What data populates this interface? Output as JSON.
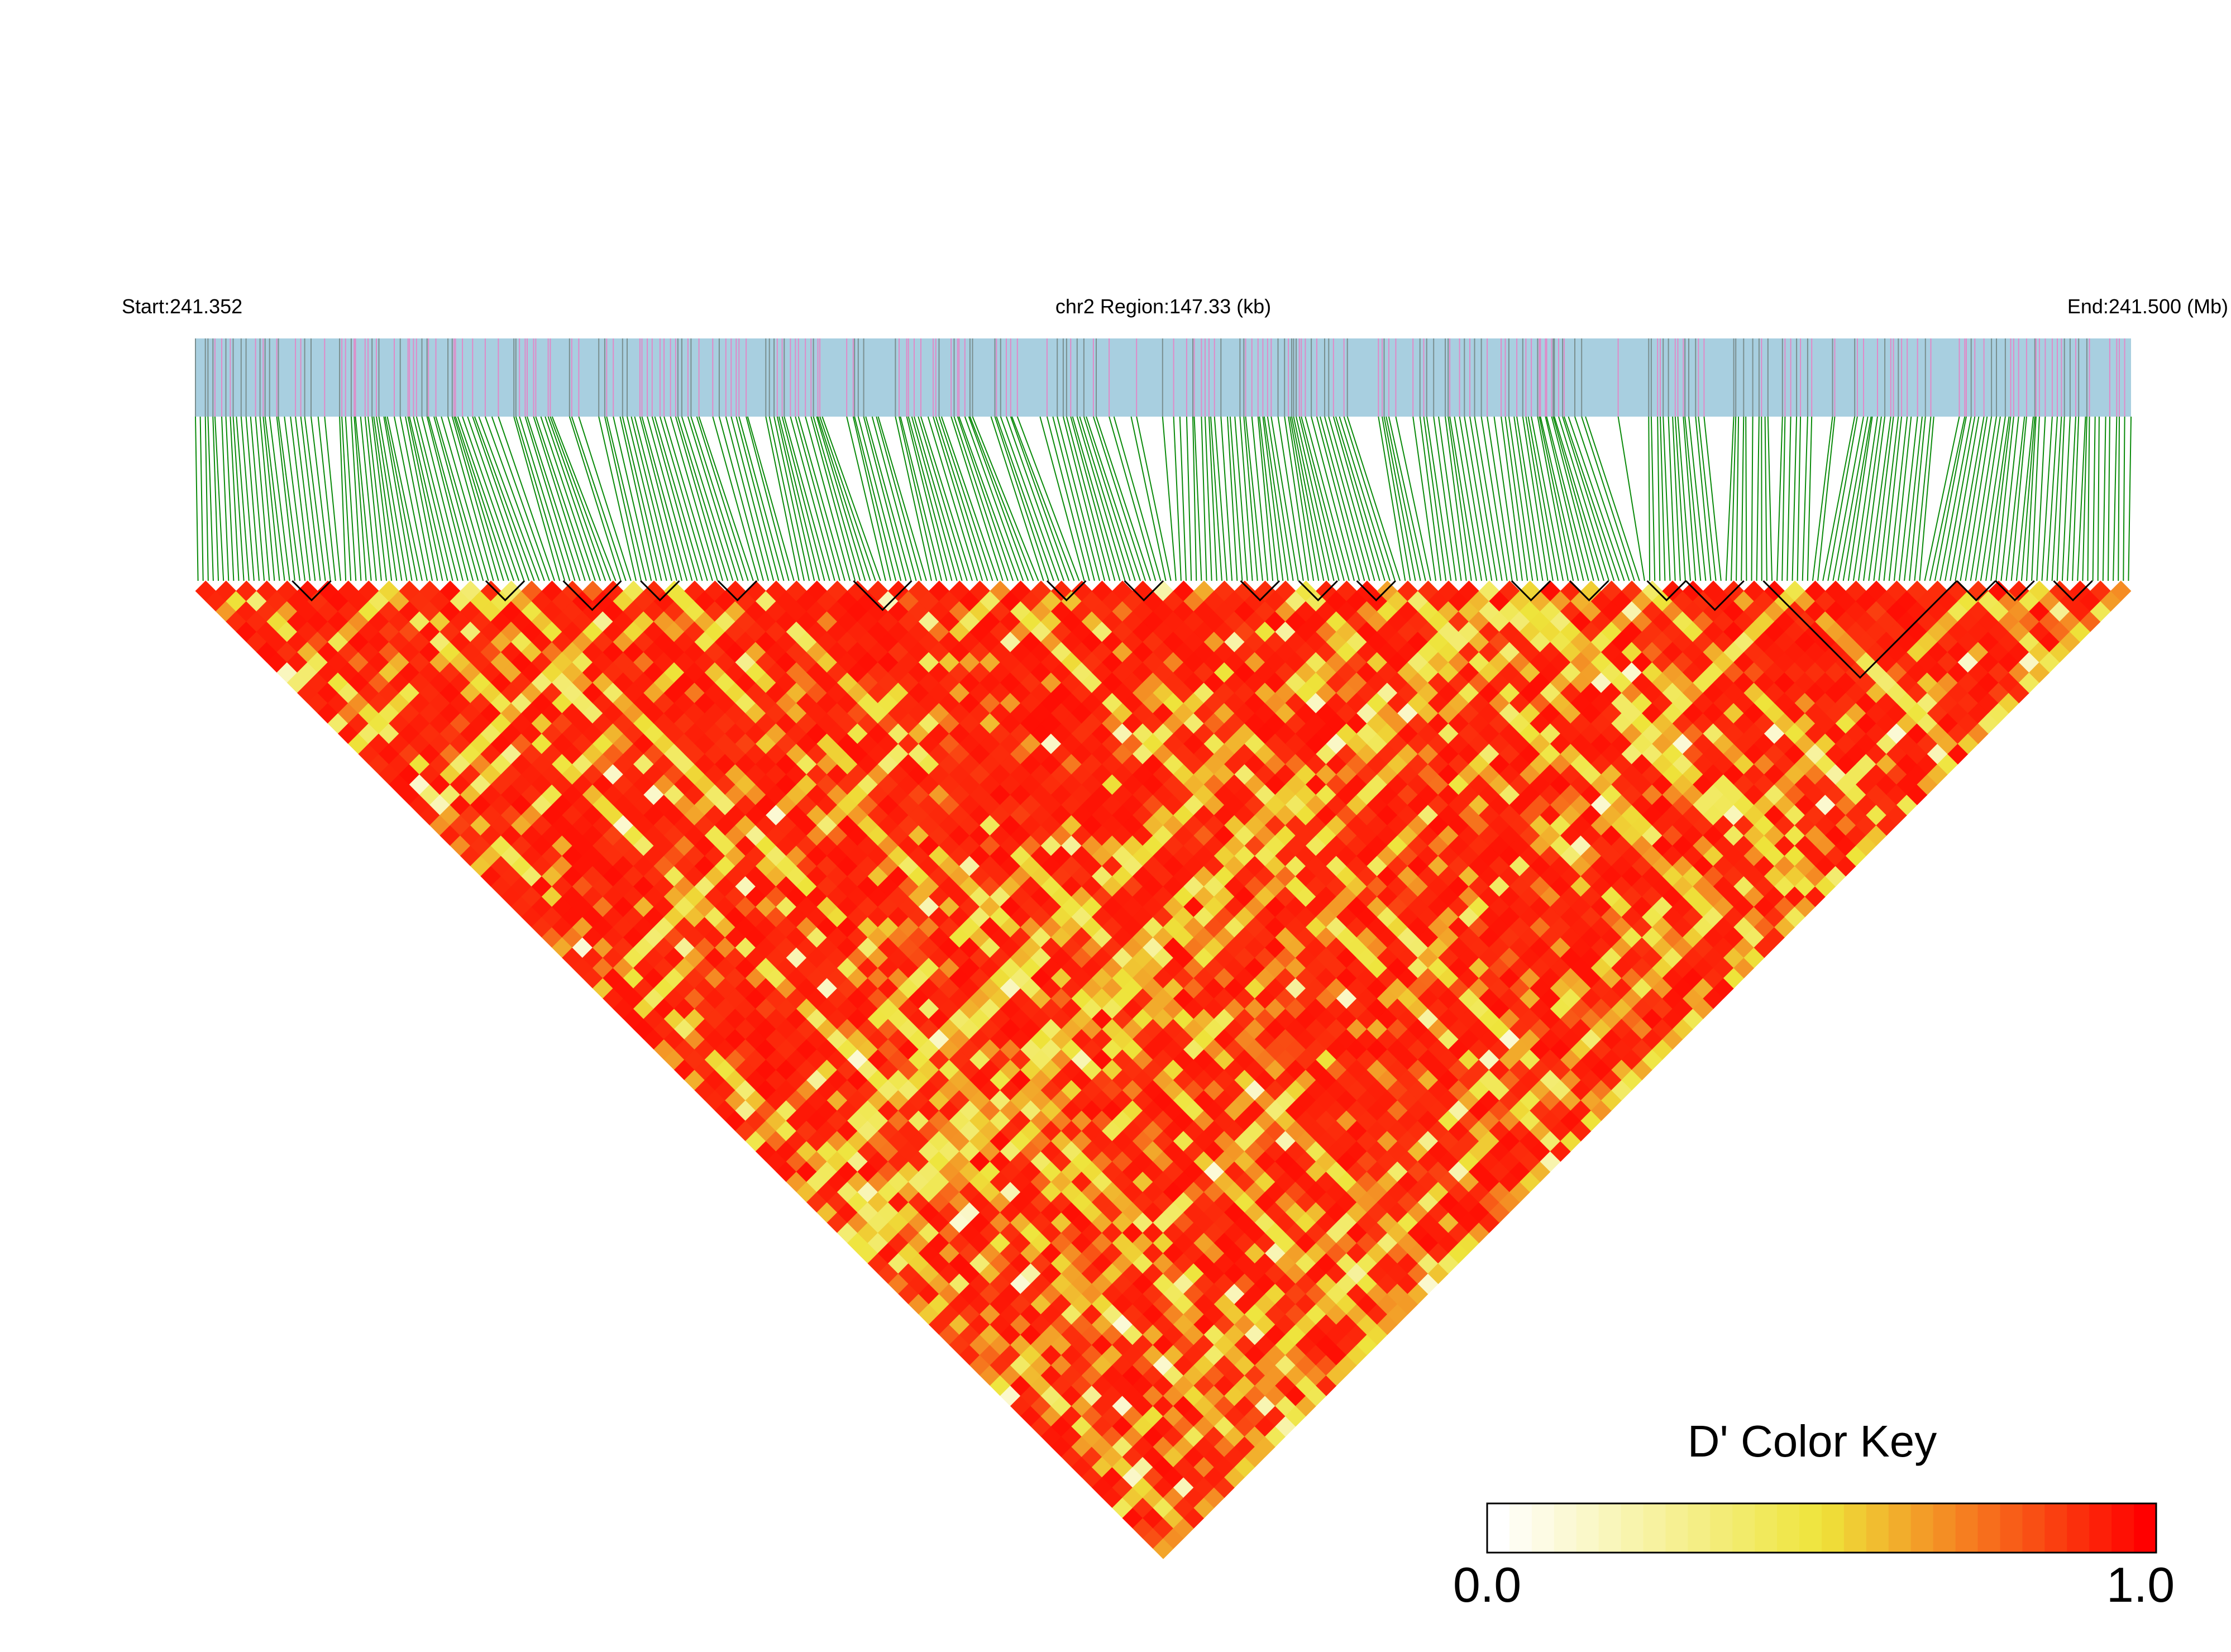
{
  "header": {
    "start_label": "Start:241.352",
    "region_label": "chr2 Region:147.33 (kb)",
    "end_label": "End:241.500 (Mb)"
  },
  "legend": {
    "title": "D' Color Key",
    "min_label": "0.0",
    "max_label": "1.0"
  },
  "colors": {
    "track_background": "#a8cfe0",
    "snp_tick_pink": "#e08ac8",
    "snp_tick_gray": "#7a8f8f",
    "connector_green": "#0a8a0a",
    "ld_high": "#ff0000",
    "ld_mid": "#f0e040",
    "ld_low": "#ffffff",
    "block_outline": "#000000"
  },
  "chart_data": {
    "type": "heatmap",
    "description_type": "linkage disequilibrium triangle heatmap",
    "chromosome": "chr2",
    "start_mb": 241.352,
    "end_mb": 241.5,
    "region_kb": 147.33,
    "n_snps": 380,
    "metric": "D'",
    "color_scale": {
      "min": 0.0,
      "max": 1.0,
      "stops": [
        {
          "value": 0.0,
          "color": "#ffffff"
        },
        {
          "value": 0.5,
          "color": "#eee43a"
        },
        {
          "value": 1.0,
          "color": "#ff0000"
        }
      ]
    },
    "haplotype_blocks_relative_span": [
      [
        0.05,
        0.07
      ],
      [
        0.15,
        0.17
      ],
      [
        0.19,
        0.22
      ],
      [
        0.23,
        0.25
      ],
      [
        0.27,
        0.29
      ],
      [
        0.34,
        0.37
      ],
      [
        0.44,
        0.46
      ],
      [
        0.48,
        0.5
      ],
      [
        0.54,
        0.56
      ],
      [
        0.57,
        0.59
      ],
      [
        0.6,
        0.62
      ],
      [
        0.68,
        0.7
      ],
      [
        0.71,
        0.73
      ],
      [
        0.75,
        0.77
      ],
      [
        0.77,
        0.8
      ],
      [
        0.81,
        0.91
      ],
      [
        0.91,
        0.93
      ],
      [
        0.93,
        0.95
      ],
      [
        0.96,
        0.98
      ]
    ]
  }
}
